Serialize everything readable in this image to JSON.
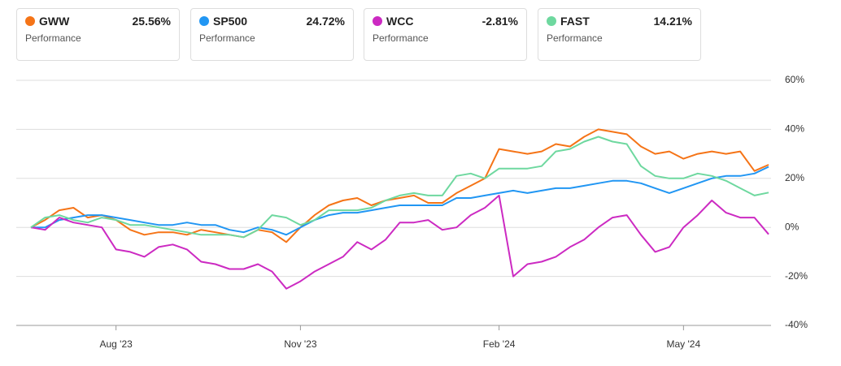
{
  "chart_data": {
    "type": "line",
    "legend_subtitle": "Performance",
    "categories": [
      null,
      null,
      null,
      null,
      null,
      null,
      "Aug '23",
      null,
      null,
      null,
      null,
      null,
      null,
      null,
      null,
      null,
      null,
      null,
      null,
      "Nov '23",
      null,
      null,
      null,
      null,
      null,
      null,
      null,
      null,
      null,
      null,
      null,
      null,
      null,
      "Feb '24",
      null,
      null,
      null,
      null,
      null,
      null,
      null,
      null,
      null,
      null,
      null,
      null,
      "May '24",
      null,
      null,
      null,
      null,
      null,
      null
    ],
    "series": [
      {
        "name": "GWW",
        "performance": "25.56%",
        "color": "#f57417",
        "values": [
          0,
          3,
          7,
          8,
          4,
          5,
          3,
          -1,
          -3,
          -2,
          -2,
          -3,
          -1,
          -2,
          -3,
          -4,
          -1,
          -2,
          -6,
          0,
          5,
          9,
          11,
          12,
          9,
          11,
          12,
          13,
          10,
          10,
          14,
          17,
          20,
          32,
          31,
          30,
          31,
          34,
          33,
          37,
          40,
          39,
          38,
          33,
          30,
          31,
          28,
          30,
          31,
          30,
          31,
          23,
          25.56
        ]
      },
      {
        "name": "SP500",
        "performance": "24.72%",
        "color": "#2196f3",
        "values": [
          0,
          0,
          3,
          4,
          5,
          5,
          4,
          3,
          2,
          1,
          1,
          2,
          1,
          1,
          -1,
          -2,
          0,
          -1,
          -3,
          0,
          3,
          5,
          6,
          6,
          7,
          8,
          9,
          9,
          9,
          9,
          12,
          12,
          13,
          14,
          15,
          14,
          15,
          16,
          16,
          17,
          18,
          19,
          19,
          18,
          16,
          14,
          16,
          18,
          20,
          21,
          21,
          22,
          24.72
        ]
      },
      {
        "name": "WCC",
        "performance": "-2.81%",
        "color": "#cc2ac2",
        "values": [
          0,
          -1,
          4,
          2,
          1,
          0,
          -9,
          -10,
          -12,
          -8,
          -7,
          -9,
          -14,
          -15,
          -17,
          -17,
          -15,
          -18,
          -25,
          -22,
          -18,
          -15,
          -12,
          -6,
          -9,
          -5,
          2,
          2,
          3,
          -1,
          0,
          5,
          8,
          13,
          -20,
          -15,
          -14,
          -12,
          -8,
          -5,
          0,
          4,
          5,
          -3,
          -10,
          -8,
          0,
          5,
          11,
          6,
          4,
          4,
          -2.81
        ]
      },
      {
        "name": "FAST",
        "performance": "14.21%",
        "color": "#6ed89f",
        "values": [
          0,
          4,
          5,
          3,
          2,
          4,
          3,
          1,
          1,
          0,
          -1,
          -2,
          -3,
          -3,
          -3,
          -4,
          -1,
          5,
          4,
          1,
          3,
          7,
          7,
          7,
          8,
          11,
          13,
          14,
          13,
          13,
          21,
          22,
          20,
          24,
          24,
          24,
          25,
          31,
          32,
          35,
          37,
          35,
          34,
          25,
          21,
          20,
          20,
          22,
          21,
          19,
          16,
          13,
          14.21
        ]
      }
    ],
    "ylim": [
      -40,
      60
    ],
    "yticks": [
      {
        "value": -40,
        "label": "-40%"
      },
      {
        "value": -20,
        "label": "-20%"
      },
      {
        "value": 0,
        "label": "0%"
      },
      {
        "value": 20,
        "label": "20%"
      },
      {
        "value": 40,
        "label": "40%"
      },
      {
        "value": 60,
        "label": "60%"
      }
    ],
    "grid": true
  }
}
